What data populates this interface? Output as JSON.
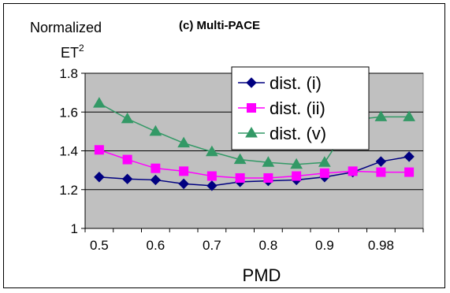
{
  "chart_data": {
    "type": "line",
    "title": "(c) Multi-PACE",
    "ylabel_line1": "Normalized",
    "ylabel_line2": "ET",
    "ylabel_sup": "2",
    "xlabel": "PMD",
    "x_tick_labels": [
      "0.5",
      "0.6",
      "0.7",
      "0.8",
      "0.9",
      "0.98"
    ],
    "x": [
      0.5,
      0.55,
      0.6,
      0.65,
      0.7,
      0.75,
      0.8,
      0.85,
      0.9,
      0.95,
      0.98,
      0.99
    ],
    "y_ticks": [
      "1",
      "1.2",
      "1.4",
      "1.6",
      "1.8"
    ],
    "ylim": [
      1,
      1.8
    ],
    "grid": true,
    "plot_background": "#c0c0c0",
    "legend_position": "top-right",
    "series": [
      {
        "name": "dist. (i)",
        "color": "#000080",
        "marker": "diamond",
        "values": [
          1.265,
          1.255,
          1.25,
          1.23,
          1.22,
          1.24,
          1.245,
          1.25,
          1.265,
          1.29,
          1.345,
          1.37
        ]
      },
      {
        "name": "dist. (ii)",
        "color": "#ff00ff",
        "marker": "square",
        "values": [
          1.405,
          1.355,
          1.31,
          1.295,
          1.27,
          1.26,
          1.26,
          1.27,
          1.285,
          1.295,
          1.29,
          1.29
        ]
      },
      {
        "name": "dist. (v)",
        "color": "#339966",
        "marker": "triangle",
        "values": [
          1.645,
          1.565,
          1.5,
          1.44,
          1.395,
          1.355,
          1.34,
          1.33,
          1.34,
          1.56,
          1.575,
          1.575
        ]
      }
    ]
  }
}
